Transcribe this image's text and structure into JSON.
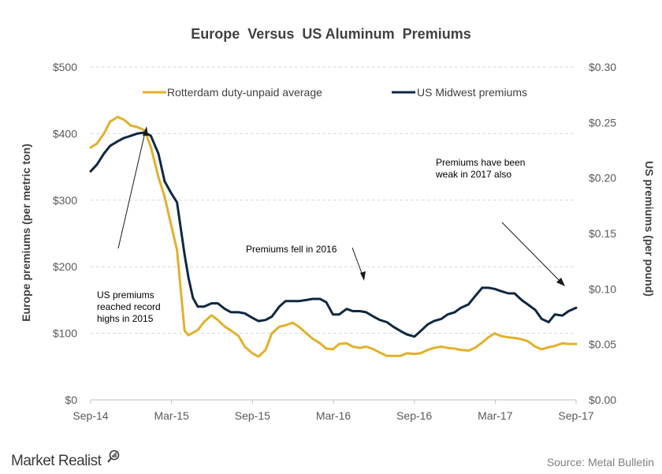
{
  "chart_data": {
    "type": "line",
    "title": "Europe  Versus  US Aluminum  Premiums",
    "ylabel_left": "Europe premiums (per metric ton)",
    "ylabel_right": "US premiums (per pound)",
    "x_ticks": [
      "Sep-14",
      "Mar-15",
      "Sep-15",
      "Mar-16",
      "Sep-16",
      "Mar-17",
      "Sep-17"
    ],
    "y_left_ticks": [
      "$0",
      "$100",
      "$200",
      "$300",
      "$400",
      "$500"
    ],
    "y_right_ticks": [
      "$0.00",
      "$0.05",
      "$0.10",
      "$0.15",
      "$0.20",
      "$0.25",
      "$0.30"
    ],
    "ylim_left": [
      0,
      500
    ],
    "ylim_right": [
      0,
      0.3
    ],
    "grid": "horizontal dashed",
    "legend_position": "top",
    "series": [
      {
        "name": "Rotterdam duty-unpaid average",
        "axis": "left",
        "color": "#e3b02b",
        "points": [
          [
            "2014-09-01",
            379
          ],
          [
            "2014-09-15",
            385
          ],
          [
            "2014-10-01",
            400
          ],
          [
            "2014-10-15",
            418
          ],
          [
            "2014-11-01",
            425
          ],
          [
            "2014-11-15",
            421
          ],
          [
            "2014-12-01",
            412
          ],
          [
            "2014-12-15",
            410
          ],
          [
            "2015-01-01",
            405
          ],
          [
            "2015-01-15",
            380
          ],
          [
            "2015-02-01",
            335
          ],
          [
            "2015-02-15",
            305
          ],
          [
            "2015-03-01",
            265
          ],
          [
            "2015-03-15",
            225
          ],
          [
            "2015-04-01",
            104
          ],
          [
            "2015-04-10",
            97
          ],
          [
            "2015-04-20",
            101
          ],
          [
            "2015-05-01",
            105
          ],
          [
            "2015-05-15",
            117
          ],
          [
            "2015-06-01",
            127
          ],
          [
            "2015-06-15",
            120
          ],
          [
            "2015-07-01",
            110
          ],
          [
            "2015-07-15",
            104
          ],
          [
            "2015-08-01",
            96
          ],
          [
            "2015-08-15",
            80
          ],
          [
            "2015-09-01",
            70
          ],
          [
            "2015-09-15",
            65
          ],
          [
            "2015-10-01",
            75
          ],
          [
            "2015-10-15",
            100
          ],
          [
            "2015-11-01",
            110
          ],
          [
            "2015-11-15",
            112
          ],
          [
            "2015-12-01",
            116
          ],
          [
            "2015-12-15",
            110
          ],
          [
            "2016-01-01",
            100
          ],
          [
            "2016-01-15",
            92
          ],
          [
            "2016-02-01",
            85
          ],
          [
            "2016-02-15",
            77
          ],
          [
            "2016-03-01",
            76
          ],
          [
            "2016-03-15",
            84
          ],
          [
            "2016-04-01",
            85
          ],
          [
            "2016-04-15",
            80
          ],
          [
            "2016-05-01",
            78
          ],
          [
            "2016-05-15",
            80
          ],
          [
            "2016-06-01",
            76
          ],
          [
            "2016-06-15",
            71
          ],
          [
            "2016-07-01",
            66
          ],
          [
            "2016-07-15",
            66
          ],
          [
            "2016-08-01",
            66
          ],
          [
            "2016-08-15",
            70
          ],
          [
            "2016-09-01",
            69
          ],
          [
            "2016-09-15",
            70
          ],
          [
            "2016-10-01",
            75
          ],
          [
            "2016-10-15",
            78
          ],
          [
            "2016-11-01",
            80
          ],
          [
            "2016-11-15",
            78
          ],
          [
            "2016-12-01",
            77
          ],
          [
            "2016-12-15",
            75
          ],
          [
            "2017-01-01",
            74
          ],
          [
            "2017-01-15",
            78
          ],
          [
            "2017-02-01",
            86
          ],
          [
            "2017-02-15",
            94
          ],
          [
            "2017-03-01",
            100
          ],
          [
            "2017-03-15",
            96
          ],
          [
            "2017-04-01",
            94
          ],
          [
            "2017-04-15",
            93
          ],
          [
            "2017-05-01",
            91
          ],
          [
            "2017-05-15",
            88
          ],
          [
            "2017-06-01",
            80
          ],
          [
            "2017-06-15",
            76
          ],
          [
            "2017-07-01",
            79
          ],
          [
            "2017-07-15",
            81
          ],
          [
            "2017-08-01",
            85
          ],
          [
            "2017-08-15",
            84
          ],
          [
            "2017-09-01",
            84
          ]
        ]
      },
      {
        "name": "US Midwest premiums",
        "axis": "right",
        "color": "#0e2841",
        "points": [
          [
            "2014-09-01",
            0.206
          ],
          [
            "2014-09-15",
            0.212
          ],
          [
            "2014-10-01",
            0.222
          ],
          [
            "2014-10-15",
            0.229
          ],
          [
            "2014-11-01",
            0.233
          ],
          [
            "2014-11-15",
            0.236
          ],
          [
            "2014-12-01",
            0.238
          ],
          [
            "2014-12-15",
            0.24
          ],
          [
            "2015-01-01",
            0.241
          ],
          [
            "2015-01-15",
            0.238
          ],
          [
            "2015-02-01",
            0.222
          ],
          [
            "2015-02-15",
            0.197
          ],
          [
            "2015-03-01",
            0.187
          ],
          [
            "2015-03-15",
            0.178
          ],
          [
            "2015-04-01",
            0.131
          ],
          [
            "2015-04-10",
            0.11
          ],
          [
            "2015-04-20",
            0.092
          ],
          [
            "2015-05-01",
            0.084
          ],
          [
            "2015-05-15",
            0.084
          ],
          [
            "2015-06-01",
            0.087
          ],
          [
            "2015-06-15",
            0.087
          ],
          [
            "2015-07-01",
            0.082
          ],
          [
            "2015-07-15",
            0.079
          ],
          [
            "2015-08-01",
            0.079
          ],
          [
            "2015-08-15",
            0.078
          ],
          [
            "2015-09-01",
            0.074
          ],
          [
            "2015-09-15",
            0.071
          ],
          [
            "2015-10-01",
            0.072
          ],
          [
            "2015-10-15",
            0.075
          ],
          [
            "2015-11-01",
            0.084
          ],
          [
            "2015-11-15",
            0.089
          ],
          [
            "2015-12-01",
            0.089
          ],
          [
            "2015-12-15",
            0.089
          ],
          [
            "2016-01-01",
            0.09
          ],
          [
            "2016-01-15",
            0.091
          ],
          [
            "2016-02-01",
            0.091
          ],
          [
            "2016-02-15",
            0.088
          ],
          [
            "2016-03-01",
            0.077
          ],
          [
            "2016-03-15",
            0.077
          ],
          [
            "2016-04-01",
            0.082
          ],
          [
            "2016-04-15",
            0.08
          ],
          [
            "2016-05-01",
            0.08
          ],
          [
            "2016-05-15",
            0.079
          ],
          [
            "2016-06-01",
            0.075
          ],
          [
            "2016-06-15",
            0.072
          ],
          [
            "2016-07-01",
            0.07
          ],
          [
            "2016-07-15",
            0.066
          ],
          [
            "2016-08-01",
            0.062
          ],
          [
            "2016-08-15",
            0.059
          ],
          [
            "2016-09-01",
            0.057
          ],
          [
            "2016-09-15",
            0.062
          ],
          [
            "2016-10-01",
            0.068
          ],
          [
            "2016-10-15",
            0.071
          ],
          [
            "2016-11-01",
            0.073
          ],
          [
            "2016-11-15",
            0.077
          ],
          [
            "2016-12-01",
            0.079
          ],
          [
            "2016-12-15",
            0.083
          ],
          [
            "2017-01-01",
            0.086
          ],
          [
            "2017-01-15",
            0.093
          ],
          [
            "2017-02-01",
            0.101
          ],
          [
            "2017-02-15",
            0.101
          ],
          [
            "2017-03-01",
            0.1
          ],
          [
            "2017-03-15",
            0.098
          ],
          [
            "2017-04-01",
            0.096
          ],
          [
            "2017-04-15",
            0.096
          ],
          [
            "2017-05-01",
            0.09
          ],
          [
            "2017-05-15",
            0.086
          ],
          [
            "2017-06-01",
            0.081
          ],
          [
            "2017-06-15",
            0.073
          ],
          [
            "2017-07-01",
            0.07
          ],
          [
            "2017-07-15",
            0.077
          ],
          [
            "2017-08-01",
            0.076
          ],
          [
            "2017-08-15",
            0.08
          ],
          [
            "2017-09-01",
            0.083
          ]
        ]
      }
    ],
    "annotations": [
      {
        "lines": [
          "US premiums",
          "reached record",
          "highs in 2015"
        ]
      },
      {
        "lines": [
          "Premiums fell in 2016"
        ]
      },
      {
        "lines": [
          "Premiums have been",
          "weak in 2017 also"
        ]
      }
    ]
  },
  "footer": {
    "brand": "Market Realist",
    "source": "Source: Metal Bulletin"
  }
}
